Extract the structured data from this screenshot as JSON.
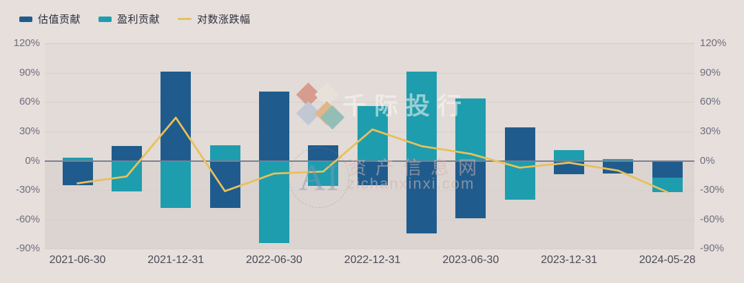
{
  "colors": {
    "background": "#e6dfdb",
    "zero_line": "#7d7d90",
    "gridline": "#d7cfcc",
    "y_axis_label": "#6e6e80",
    "x_axis_label": "#4a4a57",
    "legend_text": "#2d2d3c"
  },
  "legend": {
    "items": [
      {
        "label": "估值贡献",
        "swatch": "bar-swatch",
        "color": "#1f5c8d"
      },
      {
        "label": "盈利贡献",
        "swatch": "bar-swatch",
        "color": "#1e9dae"
      },
      {
        "label": "对数涨跌幅",
        "swatch": "line-swatch",
        "color": "#e8c05a"
      }
    ]
  },
  "watermarks": {
    "brand": "千际投行",
    "stamp_text": "AI",
    "site_name": "资产信息网",
    "site_url": "zichanxinxi.com"
  },
  "chart_data": {
    "type": "bar",
    "subtype": "stacked-bars-with-line-overlay",
    "n_points": 13,
    "x_axis_labels": [
      "2021-06-30",
      "2021-12-31",
      "2022-06-30",
      "2022-12-31",
      "2023-06-30",
      "2023-12-31",
      "2024-05-28"
    ],
    "x_axis_label_point_indices": [
      0,
      2,
      4,
      6,
      8,
      10,
      12
    ],
    "series": [
      {
        "name": "估值贡献",
        "type": "bar",
        "color": "#1f5c8d",
        "values": [
          -25,
          15,
          91,
          -48,
          71,
          16,
          -25,
          -74,
          -59,
          34,
          -14,
          -13,
          -17.5
        ]
      },
      {
        "name": "盈利贡献",
        "type": "bar",
        "color": "#1e9dae",
        "values": [
          3,
          -31,
          -48,
          16,
          -84,
          -26,
          56,
          91,
          64,
          -40,
          11,
          2,
          -14.5
        ]
      },
      {
        "name": "对数涨跌幅",
        "type": "line",
        "color": "#e8c05a",
        "values": [
          -23,
          -16,
          44,
          -31,
          -13,
          -11,
          32,
          15,
          7,
          -7,
          -2,
          -10,
          -32
        ]
      }
    ],
    "y_ticks": [
      120,
      90,
      60,
      30,
      0,
      -30,
      -60,
      -90
    ],
    "y_tick_labels": [
      "120%",
      "90%",
      "60%",
      "30%",
      "0%",
      "-30%",
      "-60%",
      "-90%"
    ],
    "ylim": [
      -90,
      120
    ],
    "y_axis_sides": "both",
    "grid": true,
    "legend_position": "top-left"
  }
}
